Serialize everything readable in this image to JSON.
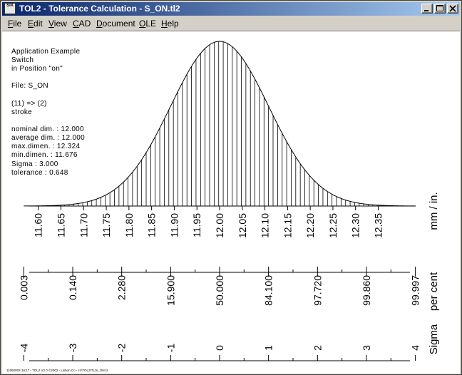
{
  "window": {
    "app_icon_text": "SIX",
    "title": "TOL2 - Tolerance Calculation  -  S_ON.tl2",
    "controls": [
      "minimize-icon",
      "maximize-icon",
      "close-icon"
    ]
  },
  "menu": [
    {
      "first": "F",
      "rest": "ile"
    },
    {
      "first": "E",
      "rest": "dit"
    },
    {
      "first": "V",
      "rest": "iew"
    },
    {
      "first": "C",
      "rest": "AD"
    },
    {
      "first": "D",
      "rest": "ocument"
    },
    {
      "first": "O",
      "rest": "LE"
    },
    {
      "first": "H",
      "rest": "elp"
    }
  ],
  "info": {
    "line1": "Application Example",
    "line2": "Switch",
    "line3": "in Position \"on\"",
    "file": "File: S_ON",
    "chain": "(11) => (2)",
    "desc": "stroke",
    "nominal": "nominal dim. : 12.000",
    "average": "average dim. : 12.000",
    "max": "max.dimen. : 12.324",
    "min": "min.dimen. : 11.676",
    "sigma": "Sigma : 3.000",
    "tolerance": "tolerance : 0.648"
  },
  "axis_labels": {
    "mm": "mm / in.",
    "sigma": "Sigma",
    "percent": "per cent"
  },
  "footer": "11092003 16:17 - TOL2 V2.0 ©2002 - Lisbon Co - H:\\TOL2\\TL\\S_ON.t2",
  "chart_data": {
    "type": "area",
    "distribution": "normal",
    "mean": 12.0,
    "sigma_value": 0.108,
    "x_ticks": [
      "11.60",
      "11.65",
      "11.70",
      "11.75",
      "11.80",
      "11.85",
      "11.90",
      "11.95",
      "12.00",
      "12.05",
      "12.10",
      "12.15",
      "12.20",
      "12.25",
      "12.30",
      "12.35"
    ],
    "x_tick_values": [
      11.6,
      11.65,
      11.7,
      11.75,
      11.8,
      11.85,
      11.9,
      11.95,
      12.0,
      12.05,
      12.1,
      12.15,
      12.2,
      12.25,
      12.3,
      12.35
    ],
    "xlim": [
      11.58,
      12.42
    ],
    "percent_ticks": [
      "0.003",
      "0.140",
      "2.280",
      "15.900",
      "50.000",
      "84.100",
      "97.720",
      "99.860",
      "99.997"
    ],
    "sigma_ticks": [
      "-4",
      "-3",
      "-2",
      "-1",
      "0",
      "1",
      "2",
      "3",
      "4"
    ],
    "sigma_tick_values": [
      -4,
      -3,
      -2,
      -1,
      0,
      1,
      2,
      3,
      4
    ],
    "hatch_step": 0.01
  }
}
